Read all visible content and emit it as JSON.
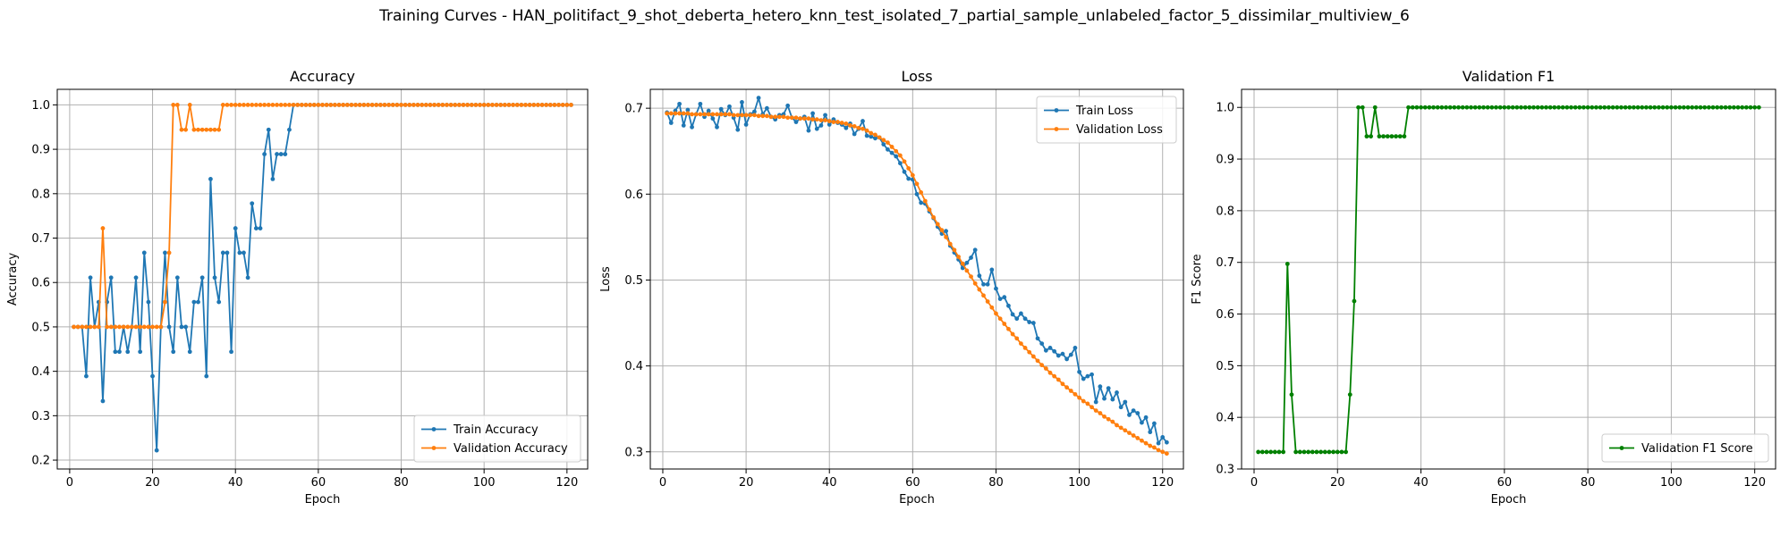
{
  "suptitle": "Training Curves - HAN_politifact_9_shot_deberta_hetero_knn_test_isolated_7_partial_sample_unlabeled_factor_5_dissimilar_multiview_6",
  "colors": {
    "train": "#1f77b4",
    "validation": "#ff7f0e",
    "f1": "#008000",
    "grid": "#b0b0b0"
  },
  "chart_data": [
    {
      "type": "line",
      "title": "Accuracy",
      "xlabel": "Epoch",
      "ylabel": "Accuracy",
      "xlim": [
        -3,
        125
      ],
      "ylim": [
        0.18,
        1.035
      ],
      "xticks": [
        0,
        20,
        40,
        60,
        80,
        100,
        120
      ],
      "yticks": [
        0.2,
        0.3,
        0.4,
        0.5,
        0.6,
        0.7,
        0.8,
        0.9,
        1.0
      ],
      "ytick_labels": [
        "0.2",
        "0.3",
        "0.4",
        "0.5",
        "0.6",
        "0.7",
        "0.8",
        "0.9",
        "1.0"
      ],
      "grid": true,
      "legend_position": "lower-right",
      "x": [
        1,
        2,
        3,
        4,
        5,
        6,
        7,
        8,
        9,
        10,
        11,
        12,
        13,
        14,
        15,
        16,
        17,
        18,
        19,
        20,
        21,
        22,
        23,
        24,
        25,
        26,
        27,
        28,
        29,
        30,
        31,
        32,
        33,
        34,
        35,
        36,
        37,
        38,
        39,
        40,
        41,
        42,
        43,
        44,
        45,
        46,
        47,
        48,
        49,
        50,
        51,
        52,
        53,
        54,
        55,
        56,
        57,
        58,
        59,
        60,
        61,
        62,
        63,
        64,
        65,
        66,
        67,
        68,
        69,
        70,
        71,
        72,
        73,
        74,
        75,
        76,
        77,
        78,
        79,
        80,
        81,
        82,
        83,
        84,
        85,
        86,
        87,
        88,
        89,
        90,
        91,
        92,
        93,
        94,
        95,
        96,
        97,
        98,
        99,
        100,
        101,
        102,
        103,
        104,
        105,
        106,
        107,
        108,
        109,
        110,
        111,
        112,
        113,
        114,
        115,
        116,
        117,
        118,
        119,
        120,
        121
      ],
      "series": [
        {
          "name": "Train Accuracy",
          "color": "#1f77b4",
          "values": [
            0.5,
            0.5,
            0.5,
            0.389,
            0.611,
            0.5,
            0.556,
            0.333,
            0.556,
            0.611,
            0.444,
            0.444,
            0.5,
            0.444,
            0.5,
            0.611,
            0.444,
            0.667,
            0.556,
            0.389,
            0.222,
            0.5,
            0.667,
            0.5,
            0.444,
            0.611,
            0.5,
            0.5,
            0.444,
            0.556,
            0.556,
            0.611,
            0.389,
            0.833,
            0.611,
            0.556,
            0.667,
            0.667,
            0.444,
            0.722,
            0.667,
            0.667,
            0.611,
            0.778,
            0.722,
            0.722,
            0.889,
            0.944,
            0.833,
            0.889,
            0.889,
            0.889,
            0.944,
            1.0,
            1.0,
            1.0,
            1.0,
            1.0,
            1.0,
            1.0,
            1.0,
            1.0,
            1.0,
            1.0,
            1.0,
            1.0,
            1.0,
            1.0,
            1.0,
            1.0,
            1.0,
            1.0,
            1.0,
            1.0,
            1.0,
            1.0,
            1.0,
            1.0,
            1.0,
            1.0,
            1.0,
            1.0,
            1.0,
            1.0,
            1.0,
            1.0,
            1.0,
            1.0,
            1.0,
            1.0,
            1.0,
            1.0,
            1.0,
            1.0,
            1.0,
            1.0,
            1.0,
            1.0,
            1.0,
            1.0,
            1.0,
            1.0,
            1.0,
            1.0,
            1.0,
            1.0,
            1.0,
            1.0,
            1.0,
            1.0,
            1.0,
            1.0,
            1.0,
            1.0,
            1.0,
            1.0,
            1.0,
            1.0,
            1.0,
            1.0,
            1.0
          ]
        },
        {
          "name": "Validation Accuracy",
          "color": "#ff7f0e",
          "values": [
            0.5,
            0.5,
            0.5,
            0.5,
            0.5,
            0.5,
            0.5,
            0.722,
            0.5,
            0.5,
            0.5,
            0.5,
            0.5,
            0.5,
            0.5,
            0.5,
            0.5,
            0.5,
            0.5,
            0.5,
            0.5,
            0.5,
            0.556,
            0.667,
            1.0,
            1.0,
            0.944,
            0.944,
            1.0,
            0.944,
            0.944,
            0.944,
            0.944,
            0.944,
            0.944,
            0.944,
            1.0,
            1.0,
            1.0,
            1.0,
            1.0,
            1.0,
            1.0,
            1.0,
            1.0,
            1.0,
            1.0,
            1.0,
            1.0,
            1.0,
            1.0,
            1.0,
            1.0,
            1.0,
            1.0,
            1.0,
            1.0,
            1.0,
            1.0,
            1.0,
            1.0,
            1.0,
            1.0,
            1.0,
            1.0,
            1.0,
            1.0,
            1.0,
            1.0,
            1.0,
            1.0,
            1.0,
            1.0,
            1.0,
            1.0,
            1.0,
            1.0,
            1.0,
            1.0,
            1.0,
            1.0,
            1.0,
            1.0,
            1.0,
            1.0,
            1.0,
            1.0,
            1.0,
            1.0,
            1.0,
            1.0,
            1.0,
            1.0,
            1.0,
            1.0,
            1.0,
            1.0,
            1.0,
            1.0,
            1.0,
            1.0,
            1.0,
            1.0,
            1.0,
            1.0,
            1.0,
            1.0,
            1.0,
            1.0,
            1.0,
            1.0,
            1.0,
            1.0,
            1.0,
            1.0,
            1.0,
            1.0,
            1.0,
            1.0,
            1.0,
            1.0
          ]
        }
      ]
    },
    {
      "type": "line",
      "title": "Loss",
      "xlabel": "Epoch",
      "ylabel": "Loss",
      "xlim": [
        -3,
        125
      ],
      "ylim": [
        0.28,
        0.722
      ],
      "xticks": [
        0,
        20,
        40,
        60,
        80,
        100,
        120
      ],
      "yticks": [
        0.3,
        0.4,
        0.5,
        0.6,
        0.7
      ],
      "ytick_labels": [
        "0.3",
        "0.4",
        "0.5",
        "0.6",
        "0.7"
      ],
      "grid": true,
      "legend_position": "top-right",
      "x": [
        1,
        2,
        3,
        4,
        5,
        6,
        7,
        8,
        9,
        10,
        11,
        12,
        13,
        14,
        15,
        16,
        17,
        18,
        19,
        20,
        21,
        22,
        23,
        24,
        25,
        26,
        27,
        28,
        29,
        30,
        31,
        32,
        33,
        34,
        35,
        36,
        37,
        38,
        39,
        40,
        41,
        42,
        43,
        44,
        45,
        46,
        47,
        48,
        49,
        50,
        51,
        52,
        53,
        54,
        55,
        56,
        57,
        58,
        59,
        60,
        61,
        62,
        63,
        64,
        65,
        66,
        67,
        68,
        69,
        70,
        71,
        72,
        73,
        74,
        75,
        76,
        77,
        78,
        79,
        80,
        81,
        82,
        83,
        84,
        85,
        86,
        87,
        88,
        89,
        90,
        91,
        92,
        93,
        94,
        95,
        96,
        97,
        98,
        99,
        100,
        101,
        102,
        103,
        104,
        105,
        106,
        107,
        108,
        109,
        110,
        111,
        112,
        113,
        114,
        115,
        116,
        117,
        118,
        119,
        120,
        121
      ],
      "series": [
        {
          "name": "Train Loss",
          "color": "#1f77b4",
          "values": [
            0.695,
            0.683,
            0.697,
            0.705,
            0.68,
            0.698,
            0.678,
            0.693,
            0.705,
            0.69,
            0.697,
            0.688,
            0.678,
            0.699,
            0.692,
            0.702,
            0.689,
            0.675,
            0.707,
            0.681,
            0.693,
            0.696,
            0.712,
            0.693,
            0.7,
            0.69,
            0.687,
            0.692,
            0.693,
            0.703,
            0.689,
            0.684,
            0.688,
            0.69,
            0.674,
            0.694,
            0.676,
            0.68,
            0.692,
            0.681,
            0.687,
            0.683,
            0.681,
            0.677,
            0.682,
            0.67,
            0.676,
            0.685,
            0.668,
            0.667,
            0.665,
            0.666,
            0.658,
            0.652,
            0.648,
            0.644,
            0.636,
            0.626,
            0.618,
            0.617,
            0.6,
            0.59,
            0.589,
            0.58,
            0.572,
            0.562,
            0.554,
            0.557,
            0.54,
            0.532,
            0.524,
            0.514,
            0.52,
            0.526,
            0.535,
            0.505,
            0.495,
            0.495,
            0.512,
            0.49,
            0.478,
            0.48,
            0.47,
            0.46,
            0.455,
            0.461,
            0.455,
            0.451,
            0.45,
            0.432,
            0.426,
            0.418,
            0.421,
            0.417,
            0.412,
            0.414,
            0.408,
            0.413,
            0.421,
            0.393,
            0.385,
            0.388,
            0.39,
            0.358,
            0.376,
            0.362,
            0.374,
            0.361,
            0.369,
            0.352,
            0.358,
            0.343,
            0.348,
            0.345,
            0.334,
            0.34,
            0.323,
            0.333,
            0.31,
            0.317,
            0.311
          ]
        },
        {
          "name": "Validation Loss",
          "color": "#ff7f0e",
          "values": [
            0.694,
            0.694,
            0.694,
            0.694,
            0.694,
            0.694,
            0.693,
            0.693,
            0.693,
            0.693,
            0.693,
            0.693,
            0.693,
            0.693,
            0.693,
            0.693,
            0.692,
            0.692,
            0.692,
            0.692,
            0.692,
            0.692,
            0.691,
            0.691,
            0.691,
            0.69,
            0.69,
            0.69,
            0.69,
            0.689,
            0.689,
            0.689,
            0.688,
            0.688,
            0.688,
            0.687,
            0.687,
            0.686,
            0.686,
            0.685,
            0.684,
            0.684,
            0.683,
            0.682,
            0.68,
            0.679,
            0.677,
            0.676,
            0.674,
            0.671,
            0.669,
            0.666,
            0.663,
            0.66,
            0.655,
            0.65,
            0.645,
            0.638,
            0.63,
            0.622,
            0.612,
            0.602,
            0.592,
            0.582,
            0.573,
            0.565,
            0.558,
            0.55,
            0.542,
            0.535,
            0.527,
            0.519,
            0.511,
            0.504,
            0.496,
            0.489,
            0.482,
            0.475,
            0.468,
            0.461,
            0.455,
            0.449,
            0.443,
            0.437,
            0.432,
            0.426,
            0.421,
            0.416,
            0.411,
            0.406,
            0.401,
            0.397,
            0.392,
            0.388,
            0.384,
            0.379,
            0.375,
            0.371,
            0.367,
            0.363,
            0.359,
            0.356,
            0.352,
            0.348,
            0.345,
            0.341,
            0.338,
            0.335,
            0.331,
            0.328,
            0.325,
            0.322,
            0.319,
            0.316,
            0.313,
            0.31,
            0.307,
            0.305,
            0.302,
            0.3,
            0.298
          ]
        }
      ]
    },
    {
      "type": "line",
      "title": "Validation F1",
      "xlabel": "Epoch",
      "ylabel": "F1 Score",
      "xlim": [
        -3,
        125
      ],
      "ylim": [
        0.3,
        1.035
      ],
      "xticks": [
        0,
        20,
        40,
        60,
        80,
        100,
        120
      ],
      "yticks": [
        0.3,
        0.4,
        0.5,
        0.6,
        0.7,
        0.8,
        0.9,
        1.0
      ],
      "ytick_labels": [
        "0.3",
        "0.4",
        "0.5",
        "0.6",
        "0.7",
        "0.8",
        "0.9",
        "1.0"
      ],
      "grid": true,
      "legend_position": "lower-right",
      "x": [
        1,
        2,
        3,
        4,
        5,
        6,
        7,
        8,
        9,
        10,
        11,
        12,
        13,
        14,
        15,
        16,
        17,
        18,
        19,
        20,
        21,
        22,
        23,
        24,
        25,
        26,
        27,
        28,
        29,
        30,
        31,
        32,
        33,
        34,
        35,
        36,
        37,
        38,
        39,
        40,
        41,
        42,
        43,
        44,
        45,
        46,
        47,
        48,
        49,
        50,
        51,
        52,
        53,
        54,
        55,
        56,
        57,
        58,
        59,
        60,
        61,
        62,
        63,
        64,
        65,
        66,
        67,
        68,
        69,
        70,
        71,
        72,
        73,
        74,
        75,
        76,
        77,
        78,
        79,
        80,
        81,
        82,
        83,
        84,
        85,
        86,
        87,
        88,
        89,
        90,
        91,
        92,
        93,
        94,
        95,
        96,
        97,
        98,
        99,
        100,
        101,
        102,
        103,
        104,
        105,
        106,
        107,
        108,
        109,
        110,
        111,
        112,
        113,
        114,
        115,
        116,
        117,
        118,
        119,
        120,
        121
      ],
      "series": [
        {
          "name": "Validation F1 Score",
          "color": "#008000",
          "values": [
            0.333,
            0.333,
            0.333,
            0.333,
            0.333,
            0.333,
            0.333,
            0.697,
            0.444,
            0.333,
            0.333,
            0.333,
            0.333,
            0.333,
            0.333,
            0.333,
            0.333,
            0.333,
            0.333,
            0.333,
            0.333,
            0.333,
            0.444,
            0.625,
            1.0,
            1.0,
            0.944,
            0.944,
            1.0,
            0.944,
            0.944,
            0.944,
            0.944,
            0.944,
            0.944,
            0.944,
            1.0,
            1.0,
            1.0,
            1.0,
            1.0,
            1.0,
            1.0,
            1.0,
            1.0,
            1.0,
            1.0,
            1.0,
            1.0,
            1.0,
            1.0,
            1.0,
            1.0,
            1.0,
            1.0,
            1.0,
            1.0,
            1.0,
            1.0,
            1.0,
            1.0,
            1.0,
            1.0,
            1.0,
            1.0,
            1.0,
            1.0,
            1.0,
            1.0,
            1.0,
            1.0,
            1.0,
            1.0,
            1.0,
            1.0,
            1.0,
            1.0,
            1.0,
            1.0,
            1.0,
            1.0,
            1.0,
            1.0,
            1.0,
            1.0,
            1.0,
            1.0,
            1.0,
            1.0,
            1.0,
            1.0,
            1.0,
            1.0,
            1.0,
            1.0,
            1.0,
            1.0,
            1.0,
            1.0,
            1.0,
            1.0,
            1.0,
            1.0,
            1.0,
            1.0,
            1.0,
            1.0,
            1.0,
            1.0,
            1.0,
            1.0,
            1.0,
            1.0,
            1.0,
            1.0,
            1.0,
            1.0,
            1.0,
            1.0,
            1.0,
            1.0
          ]
        }
      ]
    }
  ]
}
